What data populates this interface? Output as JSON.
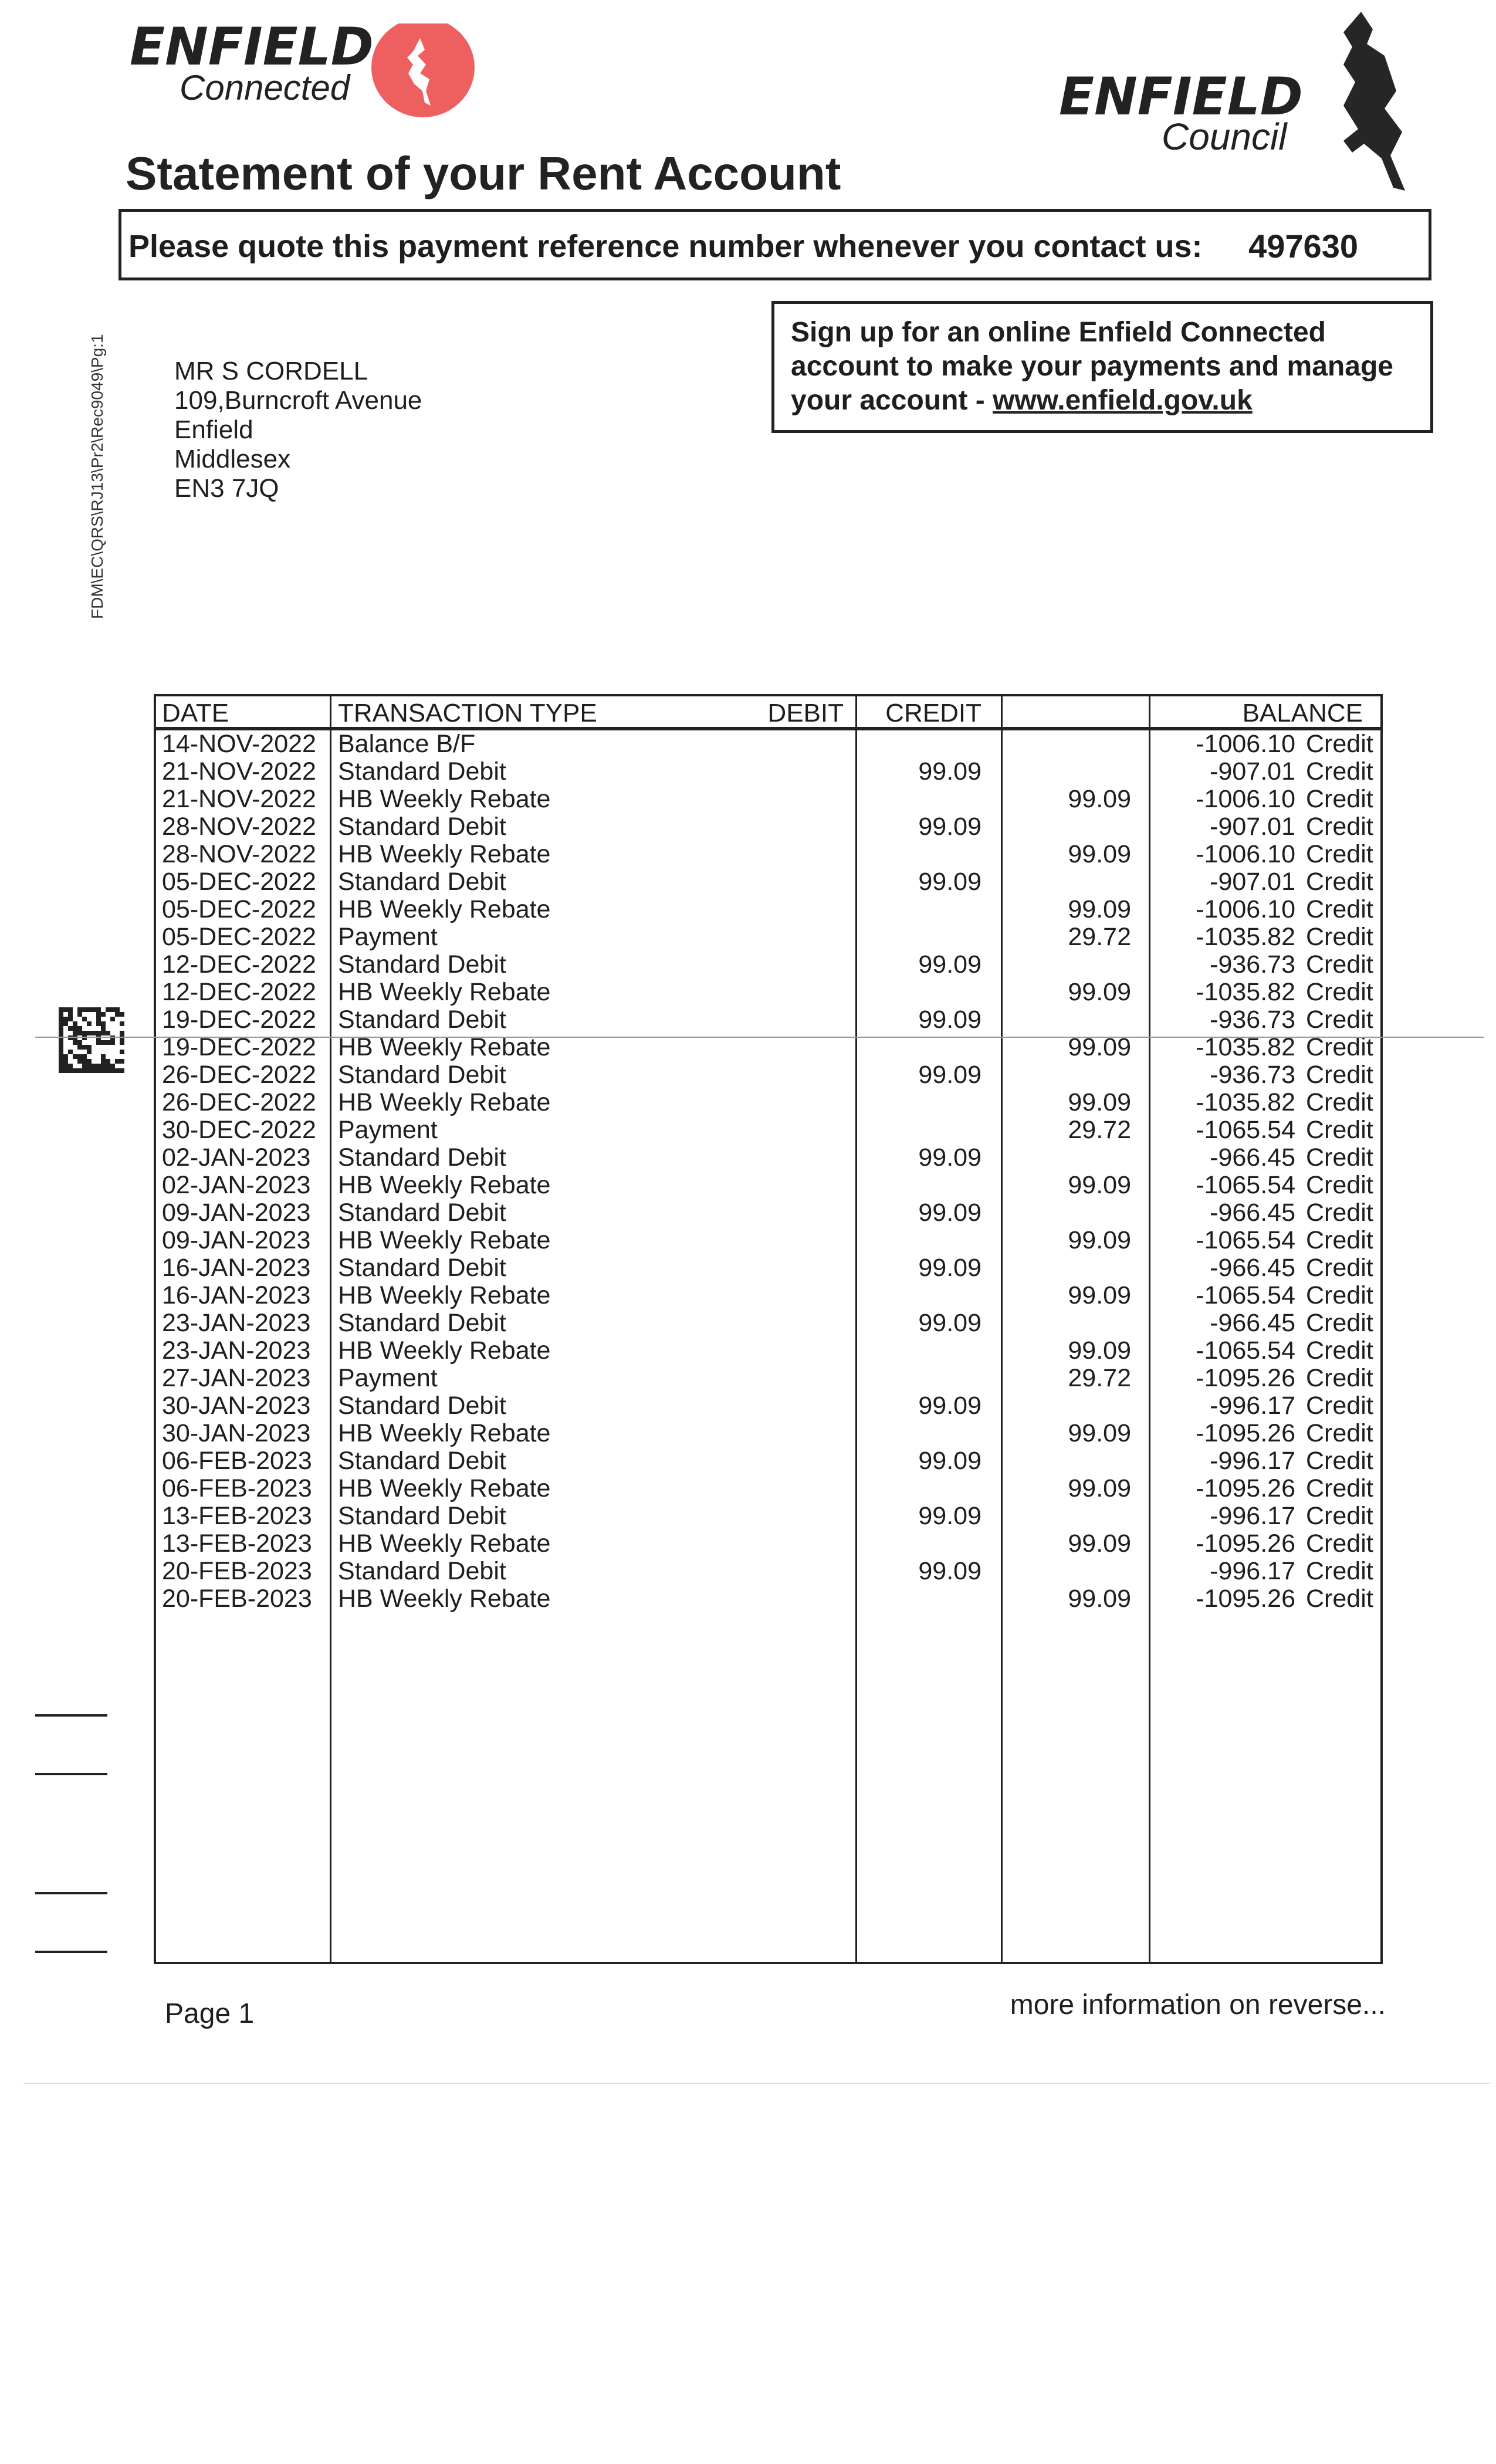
{
  "header": {
    "connected_logo": {
      "word": "ENFIELD",
      "sub": "Connected",
      "accent": "#ee6060"
    },
    "council_logo": {
      "word": "ENFIELD",
      "sub": "Council"
    },
    "title": "Statement of your Rent Account"
  },
  "reference": {
    "label": "Please quote this payment reference number whenever you contact us:",
    "number": "497630"
  },
  "signup": {
    "text": "Sign up for an online Enfield Connected account to make your payments and manage your account - ",
    "link": "www.enfield.gov.uk"
  },
  "address": [
    "MR S CORDELL",
    "109,Burncroft Avenue",
    "Enfield",
    "Middlesex",
    "EN3 7JQ"
  ],
  "document_code": "FDM\\EC\\QRS\\RJ13\\Pr2\\Rec9049\\Pg:1",
  "table": {
    "headers": {
      "date": "DATE",
      "type": "TRANSACTION TYPE",
      "debit": "DEBIT",
      "credit": "CREDIT",
      "balance": "BALANCE"
    },
    "rows": [
      {
        "date": "14-NOV-2022",
        "type": "Balance B/F",
        "debit": "",
        "credit": "",
        "balance": "-1006.10",
        "suffix": "Credit"
      },
      {
        "date": "21-NOV-2022",
        "type": "Standard Debit",
        "debit": "99.09",
        "credit": "",
        "balance": "-907.01",
        "suffix": "Credit"
      },
      {
        "date": "21-NOV-2022",
        "type": "HB Weekly Rebate",
        "debit": "",
        "credit": "99.09",
        "balance": "-1006.10",
        "suffix": "Credit"
      },
      {
        "date": "28-NOV-2022",
        "type": "Standard Debit",
        "debit": "99.09",
        "credit": "",
        "balance": "-907.01",
        "suffix": "Credit"
      },
      {
        "date": "28-NOV-2022",
        "type": "HB Weekly Rebate",
        "debit": "",
        "credit": "99.09",
        "balance": "-1006.10",
        "suffix": "Credit"
      },
      {
        "date": "05-DEC-2022",
        "type": "Standard Debit",
        "debit": "99.09",
        "credit": "",
        "balance": "-907.01",
        "suffix": "Credit"
      },
      {
        "date": "05-DEC-2022",
        "type": "HB Weekly Rebate",
        "debit": "",
        "credit": "99.09",
        "balance": "-1006.10",
        "suffix": "Credit"
      },
      {
        "date": "05-DEC-2022",
        "type": "Payment",
        "debit": "",
        "credit": "29.72",
        "balance": "-1035.82",
        "suffix": "Credit"
      },
      {
        "date": "12-DEC-2022",
        "type": "Standard Debit",
        "debit": "99.09",
        "credit": "",
        "balance": "-936.73",
        "suffix": "Credit"
      },
      {
        "date": "12-DEC-2022",
        "type": "HB Weekly Rebate",
        "debit": "",
        "credit": "99.09",
        "balance": "-1035.82",
        "suffix": "Credit"
      },
      {
        "date": "19-DEC-2022",
        "type": "Standard Debit",
        "debit": "99.09",
        "credit": "",
        "balance": "-936.73",
        "suffix": "Credit"
      },
      {
        "date": "19-DEC-2022",
        "type": "HB Weekly Rebate",
        "debit": "",
        "credit": "99.09",
        "balance": "-1035.82",
        "suffix": "Credit"
      },
      {
        "date": "26-DEC-2022",
        "type": "Standard Debit",
        "debit": "99.09",
        "credit": "",
        "balance": "-936.73",
        "suffix": "Credit"
      },
      {
        "date": "26-DEC-2022",
        "type": "HB Weekly Rebate",
        "debit": "",
        "credit": "99.09",
        "balance": "-1035.82",
        "suffix": "Credit"
      },
      {
        "date": "30-DEC-2022",
        "type": "Payment",
        "debit": "",
        "credit": "29.72",
        "balance": "-1065.54",
        "suffix": "Credit"
      },
      {
        "date": "02-JAN-2023",
        "type": "Standard Debit",
        "debit": "99.09",
        "credit": "",
        "balance": "-966.45",
        "suffix": "Credit"
      },
      {
        "date": "02-JAN-2023",
        "type": "HB Weekly Rebate",
        "debit": "",
        "credit": "99.09",
        "balance": "-1065.54",
        "suffix": "Credit"
      },
      {
        "date": "09-JAN-2023",
        "type": "Standard Debit",
        "debit": "99.09",
        "credit": "",
        "balance": "-966.45",
        "suffix": "Credit"
      },
      {
        "date": "09-JAN-2023",
        "type": "HB Weekly Rebate",
        "debit": "",
        "credit": "99.09",
        "balance": "-1065.54",
        "suffix": "Credit"
      },
      {
        "date": "16-JAN-2023",
        "type": "Standard Debit",
        "debit": "99.09",
        "credit": "",
        "balance": "-966.45",
        "suffix": "Credit"
      },
      {
        "date": "16-JAN-2023",
        "type": "HB Weekly Rebate",
        "debit": "",
        "credit": "99.09",
        "balance": "-1065.54",
        "suffix": "Credit"
      },
      {
        "date": "23-JAN-2023",
        "type": "Standard Debit",
        "debit": "99.09",
        "credit": "",
        "balance": "-966.45",
        "suffix": "Credit"
      },
      {
        "date": "23-JAN-2023",
        "type": "HB Weekly Rebate",
        "debit": "",
        "credit": "99.09",
        "balance": "-1065.54",
        "suffix": "Credit"
      },
      {
        "date": "27-JAN-2023",
        "type": "Payment",
        "debit": "",
        "credit": "29.72",
        "balance": "-1095.26",
        "suffix": "Credit"
      },
      {
        "date": "30-JAN-2023",
        "type": "Standard Debit",
        "debit": "99.09",
        "credit": "",
        "balance": "-996.17",
        "suffix": "Credit"
      },
      {
        "date": "30-JAN-2023",
        "type": "HB Weekly Rebate",
        "debit": "",
        "credit": "99.09",
        "balance": "-1095.26",
        "suffix": "Credit"
      },
      {
        "date": "06-FEB-2023",
        "type": "Standard Debit",
        "debit": "99.09",
        "credit": "",
        "balance": "-996.17",
        "suffix": "Credit"
      },
      {
        "date": "06-FEB-2023",
        "type": "HB Weekly Rebate",
        "debit": "",
        "credit": "99.09",
        "balance": "-1095.26",
        "suffix": "Credit"
      },
      {
        "date": "13-FEB-2023",
        "type": "Standard Debit",
        "debit": "99.09",
        "credit": "",
        "balance": "-996.17",
        "suffix": "Credit"
      },
      {
        "date": "13-FEB-2023",
        "type": "HB Weekly Rebate",
        "debit": "",
        "credit": "99.09",
        "balance": "-1095.26",
        "suffix": "Credit"
      },
      {
        "date": "20-FEB-2023",
        "type": "Standard Debit",
        "debit": "99.09",
        "credit": "",
        "balance": "-996.17",
        "suffix": "Credit"
      },
      {
        "date": "20-FEB-2023",
        "type": "HB Weekly Rebate",
        "debit": "",
        "credit": "99.09",
        "balance": "-1095.26",
        "suffix": "Credit"
      }
    ]
  },
  "footer": {
    "page": "Page 1",
    "more": "more information on reverse..."
  }
}
